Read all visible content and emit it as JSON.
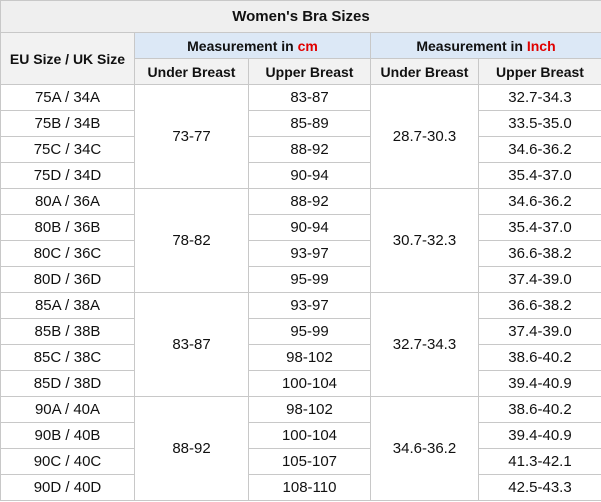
{
  "title": "Women's Bra Sizes",
  "headers": {
    "size": "EU Size / UK Size",
    "cm": {
      "prefix": "Measurement in ",
      "unit": "cm"
    },
    "inch": {
      "prefix": "Measurement in ",
      "unit": "Inch"
    },
    "sub": [
      "Under Breast",
      "Upper Breast",
      "Under Breast",
      "Upper Breast"
    ]
  },
  "groups": [
    {
      "under_cm": "73-77",
      "under_inch": "28.7-30.3",
      "rows": [
        {
          "size": "75A / 34A",
          "upper_cm": "83-87",
          "upper_inch": "32.7-34.3"
        },
        {
          "size": "75B / 34B",
          "upper_cm": "85-89",
          "upper_inch": "33.5-35.0"
        },
        {
          "size": "75C / 34C",
          "upper_cm": "88-92",
          "upper_inch": "34.6-36.2"
        },
        {
          "size": "75D / 34D",
          "upper_cm": "90-94",
          "upper_inch": "35.4-37.0"
        }
      ]
    },
    {
      "under_cm": "78-82",
      "under_inch": "30.7-32.3",
      "rows": [
        {
          "size": "80A / 36A",
          "upper_cm": "88-92",
          "upper_inch": "34.6-36.2"
        },
        {
          "size": "80B / 36B",
          "upper_cm": "90-94",
          "upper_inch": "35.4-37.0"
        },
        {
          "size": "80C / 36C",
          "upper_cm": "93-97",
          "upper_inch": "36.6-38.2"
        },
        {
          "size": "80D / 36D",
          "upper_cm": "95-99",
          "upper_inch": "37.4-39.0"
        }
      ]
    },
    {
      "under_cm": "83-87",
      "under_inch": "32.7-34.3",
      "rows": [
        {
          "size": "85A / 38A",
          "upper_cm": "93-97",
          "upper_inch": "36.6-38.2"
        },
        {
          "size": "85B / 38B",
          "upper_cm": "95-99",
          "upper_inch": "37.4-39.0"
        },
        {
          "size": "85C / 38C",
          "upper_cm": "98-102",
          "upper_inch": "38.6-40.2"
        },
        {
          "size": "85D / 38D",
          "upper_cm": "100-104",
          "upper_inch": "39.4-40.9"
        }
      ]
    },
    {
      "under_cm": "88-92",
      "under_inch": "34.6-36.2",
      "rows": [
        {
          "size": "90A / 40A",
          "upper_cm": "98-102",
          "upper_inch": "38.6-40.2"
        },
        {
          "size": "90B / 40B",
          "upper_cm": "100-104",
          "upper_inch": "39.4-40.9"
        },
        {
          "size": "90C / 40C",
          "upper_cm": "105-107",
          "upper_inch": "41.3-42.1"
        },
        {
          "size": "90D / 40D",
          "upper_cm": "108-110",
          "upper_inch": "42.5-43.3"
        }
      ]
    }
  ]
}
